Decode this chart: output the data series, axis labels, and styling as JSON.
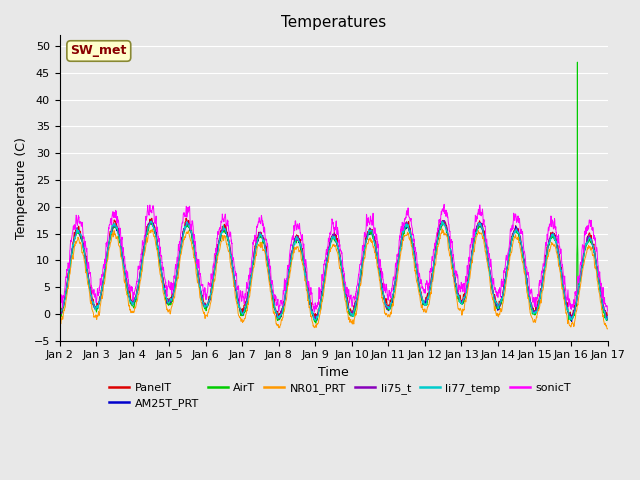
{
  "title": "Temperatures",
  "xlabel": "Time",
  "ylabel": "Temperature (C)",
  "ylim": [
    -5,
    52
  ],
  "yticks": [
    -5,
    0,
    5,
    10,
    15,
    20,
    25,
    30,
    35,
    40,
    45,
    50
  ],
  "bg_color": "#e8e8e8",
  "plot_bg_color": "#e8e8e8",
  "annotation_text": "SW_met",
  "annotation_bg": "#ffffcc",
  "annotation_border": "#888833",
  "annotation_fg": "#880000",
  "legend": [
    {
      "label": "PanelT",
      "color": "#dd0000"
    },
    {
      "label": "AM25T_PRT",
      "color": "#0000cc"
    },
    {
      "label": "AirT",
      "color": "#00cc00"
    },
    {
      "label": "NR01_PRT",
      "color": "#ff9900"
    },
    {
      "label": "li75_t",
      "color": "#8800bb"
    },
    {
      "label": "li77_temp",
      "color": "#00cccc"
    },
    {
      "label": "sonicT",
      "color": "#ff00ff"
    }
  ],
  "xticklabels": [
    "Jan 2",
    "Jan 3",
    "Jan 4",
    "Jan 5",
    "Jan 6",
    "Jan 7",
    "Jan 8",
    "Jan 9",
    "Jan 10",
    "Jan 11",
    "Jan 12",
    "Jan 13",
    "Jan 14",
    "Jan 15",
    "Jan 16",
    "Jan 17"
  ],
  "n_points": 2160,
  "spike_series": "AirT",
  "spike_index": 2040,
  "spike_value": 47
}
